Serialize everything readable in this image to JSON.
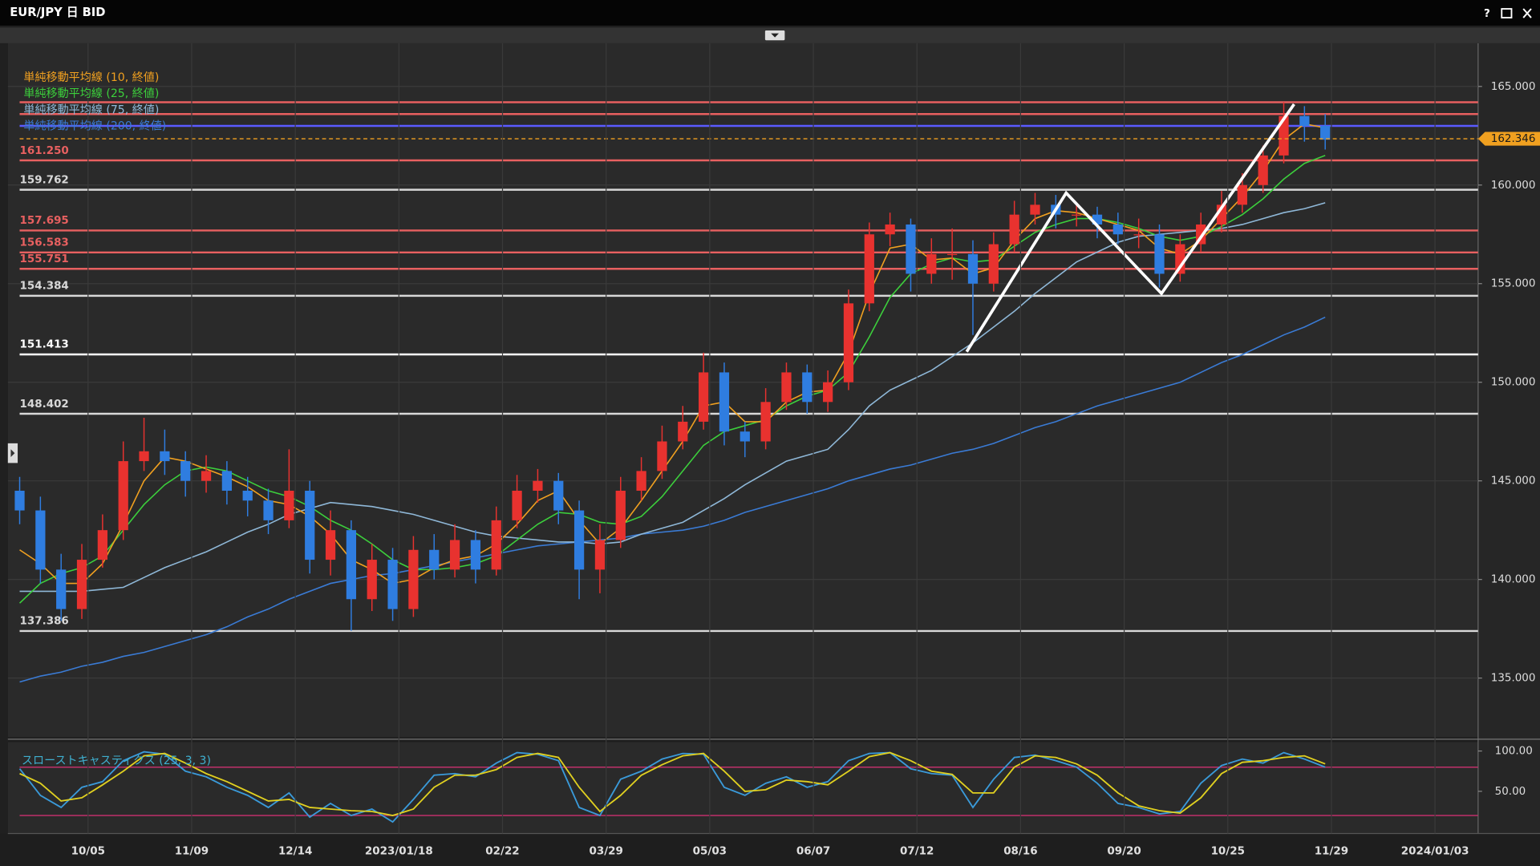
{
  "window": {
    "title": "EUR/JPY 日 BID",
    "help": "?"
  },
  "chart_data": [
    {
      "type": "candlestick",
      "legend": "top-left",
      "grid": true,
      "up_color": "#e8322f",
      "down_color": "#2f7de0",
      "xlim": [
        -0.57,
        70.38
      ],
      "ylim": [
        132.0,
        167.19
      ],
      "xticks": [
        {
          "value": 3.3,
          "label": "10/05"
        },
        {
          "value": 8.3,
          "label": "11/09"
        },
        {
          "value": 13.3,
          "label": "12/14"
        },
        {
          "value": 18.3,
          "label": "2023/01/18"
        },
        {
          "value": 23.3,
          "label": "02/22"
        },
        {
          "value": 28.3,
          "label": "03/29"
        },
        {
          "value": 33.3,
          "label": "05/03"
        },
        {
          "value": 38.3,
          "label": "06/07"
        },
        {
          "value": 43.3,
          "label": "07/12"
        },
        {
          "value": 48.3,
          "label": "08/16"
        },
        {
          "value": 53.3,
          "label": "09/20"
        },
        {
          "value": 58.3,
          "label": "10/25"
        },
        {
          "value": 63.3,
          "label": "11/29"
        },
        {
          "value": 68.3,
          "label": "2024/01/03"
        }
      ],
      "yticks": [
        {
          "value": 135,
          "label": "135.000"
        },
        {
          "value": 140,
          "label": "140.000"
        },
        {
          "value": 145,
          "label": "145.000"
        },
        {
          "value": 150,
          "label": "150.000"
        },
        {
          "value": 155,
          "label": "155.000"
        },
        {
          "value": 160,
          "label": "160.000"
        },
        {
          "value": 165,
          "label": "165.000"
        }
      ],
      "x": [
        0,
        1,
        2,
        3,
        4,
        5,
        6,
        7,
        8,
        9,
        10,
        11,
        12,
        13,
        14,
        15,
        16,
        17,
        18,
        19,
        20,
        21,
        22,
        23,
        24,
        25,
        26,
        27,
        28,
        29,
        30,
        31,
        32,
        33,
        34,
        35,
        36,
        37,
        38,
        39,
        40,
        41,
        42,
        43,
        44,
        45,
        46,
        47,
        48,
        49,
        50,
        51,
        52,
        53,
        54,
        55,
        56,
        57,
        58,
        59,
        60,
        61,
        62,
        63
      ],
      "ohlc": [
        [
          144.5,
          145.2,
          142.8,
          143.5
        ],
        [
          143.5,
          144.2,
          139.8,
          140.5
        ],
        [
          140.5,
          141.3,
          137.9,
          138.5
        ],
        [
          138.5,
          141.8,
          138,
          141
        ],
        [
          141,
          143.3,
          140.6,
          142.5
        ],
        [
          142.5,
          147,
          142,
          146
        ],
        [
          146,
          148.2,
          145.5,
          146.5
        ],
        [
          146.5,
          147.6,
          145.3,
          146
        ],
        [
          146,
          146.5,
          144.2,
          145
        ],
        [
          145,
          146.3,
          144.4,
          145.5
        ],
        [
          145.5,
          146,
          143.8,
          144.5
        ],
        [
          144.5,
          145.2,
          143.2,
          144
        ],
        [
          144,
          144.6,
          142.3,
          143
        ],
        [
          143,
          146.6,
          142.6,
          144.5
        ],
        [
          144.5,
          145,
          140.3,
          141
        ],
        [
          141,
          143.5,
          140.2,
          142.5
        ],
        [
          142.5,
          143,
          137.4,
          139
        ],
        [
          139,
          141.8,
          138.4,
          141
        ],
        [
          141,
          141.6,
          137.9,
          138.5
        ],
        [
          138.5,
          142.2,
          138.1,
          141.5
        ],
        [
          141.5,
          142.3,
          140,
          140.5
        ],
        [
          140.5,
          142.8,
          140.1,
          142
        ],
        [
          142,
          142.5,
          139.8,
          140.5
        ],
        [
          140.5,
          143.7,
          140.2,
          143
        ],
        [
          143,
          145.3,
          142.6,
          144.5
        ],
        [
          144.5,
          145.6,
          143.9,
          145
        ],
        [
          145,
          145.4,
          142.8,
          143.5
        ],
        [
          143.5,
          144,
          139,
          140.5
        ],
        [
          140.5,
          142.8,
          139.3,
          142
        ],
        [
          142,
          145.2,
          141.6,
          144.5
        ],
        [
          144.5,
          146.2,
          144,
          145.5
        ],
        [
          145.5,
          147.8,
          145.1,
          147
        ],
        [
          147,
          148.8,
          146.6,
          148
        ],
        [
          148,
          151.5,
          147.6,
          150.5
        ],
        [
          150.5,
          151,
          146.8,
          147.5
        ],
        [
          147.5,
          148,
          146.2,
          147
        ],
        [
          147,
          149.7,
          146.6,
          149
        ],
        [
          149,
          151,
          148.6,
          150.5
        ],
        [
          150.5,
          150.9,
          148.4,
          149
        ],
        [
          149,
          150.6,
          148.5,
          150
        ],
        [
          150,
          154.7,
          149.6,
          154
        ],
        [
          154,
          158.1,
          153.6,
          157.5
        ],
        [
          157.5,
          158.6,
          156.9,
          158
        ],
        [
          158,
          158.3,
          154.6,
          155.5
        ],
        [
          155.5,
          157.3,
          155,
          156.5
        ],
        [
          156.5,
          157.8,
          155.2,
          156.5
        ],
        [
          156.5,
          157.2,
          152.4,
          155
        ],
        [
          155,
          157.6,
          154.6,
          157
        ],
        [
          157,
          159.2,
          156.6,
          158.5
        ],
        [
          158.5,
          159.6,
          158,
          159
        ],
        [
          159,
          159.5,
          157.8,
          158.5
        ],
        [
          158.5,
          159.1,
          157.9,
          158.5
        ],
        [
          158.5,
          158.9,
          157.3,
          158
        ],
        [
          158,
          158.6,
          157,
          157.5
        ],
        [
          157.5,
          158.3,
          156.8,
          157.5
        ],
        [
          157.5,
          158,
          154.8,
          155.5
        ],
        [
          155.5,
          157.5,
          155.1,
          157
        ],
        [
          157,
          158.6,
          156.6,
          158
        ],
        [
          158,
          159.7,
          157.6,
          159
        ],
        [
          159,
          160.6,
          158.6,
          160
        ],
        [
          160,
          162,
          159.6,
          161.5
        ],
        [
          161.5,
          164.2,
          161.1,
          163.5
        ],
        [
          163.5,
          164,
          162.2,
          163
        ],
        [
          163,
          163.6,
          161.8,
          162.3
        ]
      ],
      "series": [
        {
          "name": "単純移動平均線 (10, 終値)",
          "color": "#f0a020",
          "values": [
            141.5,
            140.8,
            139.8,
            139.8,
            140.8,
            142.8,
            145,
            146.2,
            146,
            145.6,
            145.2,
            144.7,
            144,
            143.8,
            143.2,
            142.3,
            141,
            140.5,
            139.8,
            140,
            140.6,
            141,
            141.2,
            141.8,
            142.8,
            144,
            144.5,
            143,
            141.8,
            142.6,
            144,
            145.5,
            147,
            148.8,
            149,
            148,
            148,
            149,
            149.5,
            149.6,
            151.5,
            154.5,
            156.8,
            157,
            156.2,
            156.3,
            155.5,
            155.8,
            157.2,
            158.3,
            158.7,
            158.6,
            158.3,
            158,
            157.7,
            156.8,
            156.5,
            157.2,
            158.3,
            159.4,
            160.7,
            162.3,
            163.1,
            162.9
          ]
        },
        {
          "name": "単純移動平均線 (25, 終値)",
          "color": "#3ccf3c",
          "values": [
            138.8,
            139.8,
            140.3,
            140.6,
            141.2,
            142.5,
            143.8,
            144.8,
            145.5,
            145.7,
            145.5,
            145,
            144.5,
            144.2,
            143.7,
            143,
            142.5,
            141.8,
            141,
            140.5,
            140.5,
            140.6,
            140.8,
            141.2,
            142,
            142.8,
            143.4,
            143.3,
            142.9,
            142.8,
            143.2,
            144.2,
            145.5,
            146.8,
            147.5,
            147.8,
            148.1,
            148.8,
            149.3,
            149.6,
            150.5,
            152.3,
            154.3,
            155.5,
            156,
            156.3,
            156.1,
            156.2,
            156.9,
            157.6,
            158,
            158.3,
            158.3,
            158.1,
            157.8,
            157.4,
            157.2,
            157.4,
            157.9,
            158.5,
            159.3,
            160.3,
            161.1,
            161.5
          ]
        },
        {
          "name": "単純移動平均線 (75, 終値)",
          "color": "#8fb8d8",
          "values": [
            139.4,
            139.4,
            139.4,
            139.4,
            139.5,
            139.6,
            140.1,
            140.6,
            141,
            141.4,
            141.9,
            142.4,
            142.8,
            143.3,
            143.6,
            143.9,
            143.8,
            143.7,
            143.5,
            143.3,
            143,
            142.7,
            142.4,
            142.2,
            142.1,
            142,
            141.9,
            141.9,
            141.8,
            141.9,
            142.3,
            142.6,
            142.9,
            143.5,
            144.1,
            144.8,
            145.4,
            146,
            146.3,
            146.6,
            147.6,
            148.8,
            149.6,
            150.1,
            150.6,
            151.3,
            152,
            152.8,
            153.6,
            154.5,
            155.3,
            156.1,
            156.6,
            157.1,
            157.4,
            157.5,
            157.6,
            157.7,
            157.8,
            158,
            158.3,
            158.6,
            158.8,
            159.1
          ]
        },
        {
          "name": "単純移動平均線 (200, 終値)",
          "color": "#3a7bd5",
          "values": [
            134.8,
            135.1,
            135.3,
            135.6,
            135.8,
            136.1,
            136.3,
            136.6,
            136.9,
            137.2,
            137.6,
            138.1,
            138.5,
            139,
            139.4,
            139.8,
            140,
            140.2,
            140.3,
            140.5,
            140.7,
            140.9,
            141.1,
            141.3,
            141.5,
            141.7,
            141.8,
            141.9,
            142,
            142.1,
            142.3,
            142.4,
            142.5,
            142.7,
            143,
            143.4,
            143.7,
            144,
            144.3,
            144.6,
            145,
            145.3,
            145.6,
            145.8,
            146.1,
            146.4,
            146.6,
            146.9,
            147.3,
            147.7,
            148,
            148.4,
            148.8,
            149.1,
            149.4,
            149.7,
            150,
            150.5,
            151,
            151.4,
            151.9,
            152.4,
            152.8,
            153.3
          ]
        }
      ],
      "levels": [
        {
          "value": 164.2,
          "color": "#e86060"
        },
        {
          "value": 163.6,
          "color": "#e86060"
        },
        {
          "value": 163.0,
          "color": "#5a5aff"
        },
        {
          "value": 161.25,
          "label": "161.250",
          "color": "#e86060"
        },
        {
          "value": 159.762,
          "label": "159.762",
          "color": "#d8d8d8"
        },
        {
          "value": 157.695,
          "label": "157.695",
          "color": "#e86060"
        },
        {
          "value": 156.583,
          "label": "156.583",
          "color": "#e86060"
        },
        {
          "value": 155.751,
          "label": "155.751",
          "color": "#e86060"
        },
        {
          "value": 154.384,
          "label": "154.384",
          "color": "#d8d8d8"
        },
        {
          "value": 151.413,
          "label": "151.413",
          "color": "#ffffff"
        },
        {
          "value": 148.402,
          "label": "148.402",
          "color": "#d8d8d8"
        },
        {
          "value": 137.386,
          "label": "137.386",
          "color": "#d8d8d8"
        }
      ],
      "annotation_line": {
        "x": [
          45.7,
          50.5,
          55.1,
          61.5
        ],
        "y": [
          151.55,
          159.6,
          154.5,
          164.1
        ],
        "color": "#ffffff"
      },
      "last": {
        "value": 162.346,
        "label": "162.346",
        "color": "#f0a020"
      }
    },
    {
      "type": "line",
      "title": "スローストキャスティクス (25, 3, 3)",
      "ylim": [
        -2.4,
        111
      ],
      "yticks": [
        {
          "value": 100,
          "label": "100.00"
        },
        {
          "value": 50,
          "label": "50.00"
        }
      ],
      "levels": [
        {
          "value": 80,
          "color": "#c0306a"
        },
        {
          "value": 20,
          "color": "#c0306a"
        }
      ],
      "series": [
        {
          "color": "#3a9ad9",
          "values": [
            78,
            45,
            30,
            55,
            62,
            88,
            99,
            96,
            75,
            68,
            55,
            45,
            30,
            48,
            18,
            35,
            20,
            28,
            12,
            40,
            70,
            72,
            68,
            85,
            98,
            96,
            88,
            30,
            20,
            65,
            75,
            90,
            97,
            96,
            55,
            45,
            60,
            68,
            55,
            62,
            88,
            97,
            98,
            78,
            72,
            70,
            30,
            65,
            92,
            95,
            88,
            80,
            60,
            35,
            30,
            22,
            25,
            60,
            82,
            90,
            85,
            98,
            90,
            80
          ]
        },
        {
          "color": "#e0d020",
          "values": [
            72,
            60,
            38,
            42,
            58,
            75,
            94,
            97,
            85,
            72,
            62,
            50,
            38,
            40,
            30,
            28,
            26,
            25,
            20,
            28,
            55,
            70,
            70,
            77,
            92,
            97,
            92,
            55,
            25,
            45,
            70,
            83,
            94,
            97,
            75,
            50,
            52,
            64,
            62,
            58,
            75,
            93,
            98,
            88,
            75,
            71,
            48,
            48,
            80,
            94,
            92,
            84,
            70,
            48,
            32,
            26,
            23,
            42,
            72,
            86,
            88,
            92,
            94,
            84
          ]
        }
      ]
    }
  ]
}
